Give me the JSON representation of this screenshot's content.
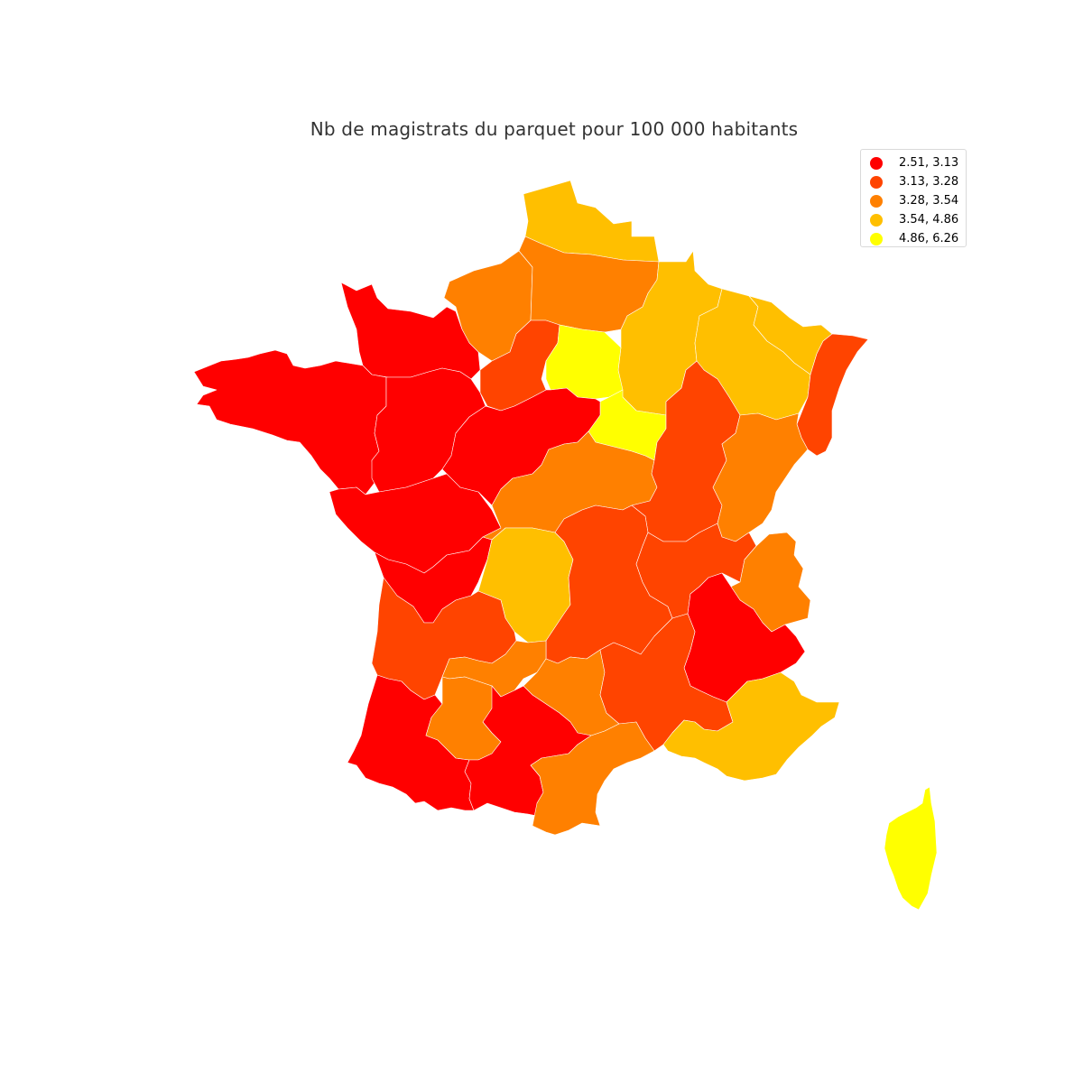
{
  "title": "Nb de magistrats du parquet pour 100 000 habitants",
  "colors": {
    "c1": "#ff0000",
    "c2": "#ff4400",
    "c3": "#ff8000",
    "c4": "#ffbf00",
    "c5": "#ffff00"
  },
  "legend": {
    "items": [
      {
        "label": "2.51, 3.13",
        "color": "#ff0000"
      },
      {
        "label": "3.13, 3.28",
        "color": "#ff4400"
      },
      {
        "label": "3.28, 3.54",
        "color": "#ff8000"
      },
      {
        "label": "3.54, 4.86",
        "color": "#ffbf00"
      },
      {
        "label": "4.86, 6.26",
        "color": "#ffff00"
      }
    ]
  },
  "regions": [
    {
      "id": "nord-pas-de-calais",
      "class": "c4"
    },
    {
      "id": "normandie-est",
      "class": "c3"
    },
    {
      "id": "picardie",
      "class": "c3"
    },
    {
      "id": "champagne",
      "class": "c4"
    },
    {
      "id": "lorraine",
      "class": "c4"
    },
    {
      "id": "moselle",
      "class": "c4"
    },
    {
      "id": "alsace",
      "class": "c2"
    },
    {
      "id": "normandie-ouest",
      "class": "c1"
    },
    {
      "id": "bretagne",
      "class": "c1"
    },
    {
      "id": "pays-de-loire-nord",
      "class": "c1"
    },
    {
      "id": "pays-de-loire-sud",
      "class": "c1"
    },
    {
      "id": "eure-et-loir",
      "class": "c2"
    },
    {
      "id": "ile-de-france",
      "class": "c5"
    },
    {
      "id": "bourgogne-nord",
      "class": "c5"
    },
    {
      "id": "centre-val-de-loire",
      "class": "c1"
    },
    {
      "id": "poitou-charentes",
      "class": "c1"
    },
    {
      "id": "limousin-nord",
      "class": "c3"
    },
    {
      "id": "bourgogne-sud",
      "class": "c2"
    },
    {
      "id": "franche-comte",
      "class": "c3"
    },
    {
      "id": "limousin",
      "class": "c4"
    },
    {
      "id": "auvergne",
      "class": "c2"
    },
    {
      "id": "rhone",
      "class": "c2"
    },
    {
      "id": "savoie",
      "class": "c3"
    },
    {
      "id": "gironde",
      "class": "c2"
    },
    {
      "id": "isere-drome",
      "class": "c1"
    },
    {
      "id": "lot",
      "class": "c3"
    },
    {
      "id": "aveyron-tarn",
      "class": "c3"
    },
    {
      "id": "ardeche-gard",
      "class": "c2"
    },
    {
      "id": "provence",
      "class": "c4"
    },
    {
      "id": "landes-pyrenees",
      "class": "c1"
    },
    {
      "id": "tarn-et-garonne",
      "class": "c3"
    },
    {
      "id": "haute-garonne",
      "class": "c1"
    },
    {
      "id": "languedoc",
      "class": "c3"
    },
    {
      "id": "corse",
      "class": "c5"
    }
  ]
}
